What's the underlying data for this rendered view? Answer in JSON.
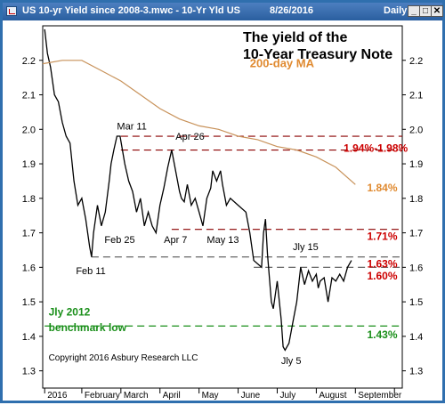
{
  "window": {
    "title": "US 10-yr Yield since 2008-3.mwc - 10-Yr Yld US",
    "date": "8/26/2016",
    "period": "Daily",
    "controls": {
      "minimize": "_",
      "maximize": "□",
      "close": "✕"
    }
  },
  "colors": {
    "price": "#000000",
    "ma": "#c8925a",
    "resistance": "#8b0000",
    "support_dashed": "#555555",
    "benchmark": "#1a8f1a",
    "annotation_red": "#cc0000",
    "annotation_orange": "#e08a30"
  },
  "chart_data": {
    "type": "line",
    "title": "The yield of the\n10-Year Treasury Note",
    "title_lines": [
      "The yield of the",
      "10-Year Treasury Note"
    ],
    "ylim": [
      1.25,
      2.3
    ],
    "yticks": [
      1.3,
      1.4,
      1.5,
      1.6,
      1.7,
      1.8,
      1.9,
      2.0,
      2.1,
      2.2
    ],
    "ytick_labels": [
      "1.3",
      "1.4",
      "1.5",
      "1.6",
      "1.7",
      "1.8",
      "1.9",
      "2.0",
      "2.1",
      "2.2"
    ],
    "xlim": [
      0,
      9.2
    ],
    "xticks": [
      0.05,
      1,
      2,
      3,
      4,
      5,
      6,
      7,
      8,
      9
    ],
    "xtick_labels": [
      "2016",
      "February",
      "March",
      "April",
      "May",
      "June",
      "July",
      "August",
      "September",
      ""
    ],
    "grid": false,
    "series": [
      {
        "name": "10-Yr Yld US",
        "x": [
          0.05,
          0.12,
          0.2,
          0.3,
          0.4,
          0.5,
          0.6,
          0.7,
          0.8,
          0.9,
          1.0,
          1.1,
          1.2,
          1.25,
          1.3,
          1.4,
          1.5,
          1.6,
          1.7,
          1.75,
          1.82,
          1.9,
          1.98,
          2.1,
          2.2,
          2.3,
          2.4,
          2.5,
          2.6,
          2.7,
          2.8,
          2.9,
          3.0,
          3.1,
          3.2,
          3.3,
          3.4,
          3.5,
          3.55,
          3.62,
          3.7,
          3.8,
          3.9,
          4.0,
          4.1,
          4.2,
          4.3,
          4.35,
          4.45,
          4.55,
          4.6,
          4.7,
          4.8,
          5.0,
          5.2,
          5.3,
          5.4,
          5.6,
          5.65,
          5.7,
          5.75,
          5.8,
          5.85,
          5.9,
          6.0,
          6.1,
          6.15,
          6.2,
          6.3,
          6.4,
          6.5,
          6.6,
          6.7,
          6.8,
          6.9,
          7.0,
          7.05,
          7.1,
          7.2,
          7.3,
          7.4,
          7.5,
          7.6,
          7.7,
          7.8,
          7.9
        ],
        "y": [
          2.29,
          2.22,
          2.18,
          2.1,
          2.08,
          2.02,
          1.98,
          1.96,
          1.85,
          1.78,
          1.8,
          1.74,
          1.66,
          1.63,
          1.7,
          1.78,
          1.72,
          1.76,
          1.85,
          1.9,
          1.94,
          1.98,
          1.98,
          1.9,
          1.85,
          1.82,
          1.76,
          1.8,
          1.72,
          1.76,
          1.72,
          1.7,
          1.78,
          1.83,
          1.89,
          1.94,
          1.88,
          1.82,
          1.8,
          1.79,
          1.84,
          1.78,
          1.8,
          1.76,
          1.72,
          1.8,
          1.83,
          1.88,
          1.85,
          1.88,
          1.84,
          1.78,
          1.8,
          1.78,
          1.76,
          1.7,
          1.62,
          1.6,
          1.7,
          1.74,
          1.64,
          1.57,
          1.5,
          1.48,
          1.56,
          1.45,
          1.37,
          1.36,
          1.38,
          1.44,
          1.5,
          1.6,
          1.55,
          1.59,
          1.56,
          1.58,
          1.54,
          1.56,
          1.57,
          1.5,
          1.57,
          1.56,
          1.58,
          1.56,
          1.6,
          1.62
        ]
      },
      {
        "name": "200-day MA",
        "x": [
          0,
          0.5,
          1.0,
          1.5,
          2.0,
          2.5,
          3.0,
          3.5,
          4.0,
          4.5,
          5.0,
          5.5,
          6.0,
          6.5,
          7.0,
          7.5,
          8.0
        ],
        "y": [
          2.19,
          2.2,
          2.2,
          2.17,
          2.14,
          2.1,
          2.06,
          2.03,
          2.01,
          2.0,
          1.98,
          1.97,
          1.95,
          1.94,
          1.92,
          1.89,
          1.84
        ]
      }
    ],
    "levels": [
      {
        "name": "Mar 11 resistance",
        "y": 1.98,
        "x_start": 2.0,
        "x_end": 9.2,
        "style": "dashed",
        "color": "#8b0000"
      },
      {
        "name": "Mar 11 resistance lower",
        "y": 1.94,
        "x_start": 2.0,
        "x_end": 9.2,
        "style": "dashed",
        "color": "#8b0000"
      },
      {
        "name": "Apr 7 / May 13 support",
        "y": 1.71,
        "x_start": 3.3,
        "x_end": 9.2,
        "style": "dashed",
        "color": "#8b0000"
      },
      {
        "name": "Feb 11 low",
        "y": 1.63,
        "x_start": 1.25,
        "x_end": 9.2,
        "style": "dashed",
        "color": "#555555"
      },
      {
        "name": "Jly 15 level",
        "y": 1.6,
        "x_start": 5.4,
        "x_end": 9.2,
        "style": "dashed",
        "color": "#555555"
      },
      {
        "name": "Jly 2012 benchmark low",
        "y": 1.43,
        "x_start": 0.05,
        "x_end": 9.2,
        "style": "dashed",
        "color": "#1a8f1a"
      }
    ],
    "annotations": [
      {
        "text": "200-day MA",
        "x": 5.3,
        "y": 2.18,
        "color": "#e08a30",
        "size": 13
      },
      {
        "text": "Mar 11",
        "x": 1.9,
        "y": 2.0,
        "color": "#000000",
        "size": 11
      },
      {
        "text": "Apr 26",
        "x": 3.4,
        "y": 1.97,
        "color": "#000000",
        "size": 11
      },
      {
        "text": "Feb 25",
        "x": 1.58,
        "y": 1.67,
        "color": "#000000",
        "size": 11
      },
      {
        "text": "Apr 7",
        "x": 3.1,
        "y": 1.67,
        "color": "#000000",
        "size": 11
      },
      {
        "text": "May 13",
        "x": 4.2,
        "y": 1.67,
        "color": "#000000",
        "size": 11
      },
      {
        "text": "Jly 15",
        "x": 6.4,
        "y": 1.65,
        "color": "#000000",
        "size": 11
      },
      {
        "text": "Feb 11",
        "x": 0.85,
        "y": 1.58,
        "color": "#000000",
        "size": 11
      },
      {
        "text": "Jly 5",
        "x": 6.1,
        "y": 1.32,
        "color": "#000000",
        "size": 11
      },
      {
        "text": "1.94%-1.98%",
        "x": 7.7,
        "y": 1.935,
        "color": "#cc0000",
        "size": 12
      },
      {
        "text": "1.84%",
        "x": 8.3,
        "y": 1.82,
        "color": "#e08a30",
        "size": 12
      },
      {
        "text": "1.71%",
        "x": 8.3,
        "y": 1.68,
        "color": "#cc0000",
        "size": 12
      },
      {
        "text": "1.63%",
        "x": 8.3,
        "y": 1.6,
        "color": "#cc0000",
        "size": 12
      },
      {
        "text": "1.60%",
        "x": 8.3,
        "y": 1.565,
        "color": "#cc0000",
        "size": 12
      },
      {
        "text": "1.43%",
        "x": 8.3,
        "y": 1.395,
        "color": "#1a8f1a",
        "size": 12
      },
      {
        "text": "Jly 2012",
        "x": 0.15,
        "y": 1.46,
        "color": "#1a8f1a",
        "size": 12
      },
      {
        "text": "benchmark low",
        "x": 0.15,
        "y": 1.415,
        "color": "#1a8f1a",
        "size": 12
      },
      {
        "text": "Copyright 2016 Asbury Research LLC",
        "x": 0.15,
        "y": 1.33,
        "color": "#000000",
        "size": 10
      }
    ]
  }
}
